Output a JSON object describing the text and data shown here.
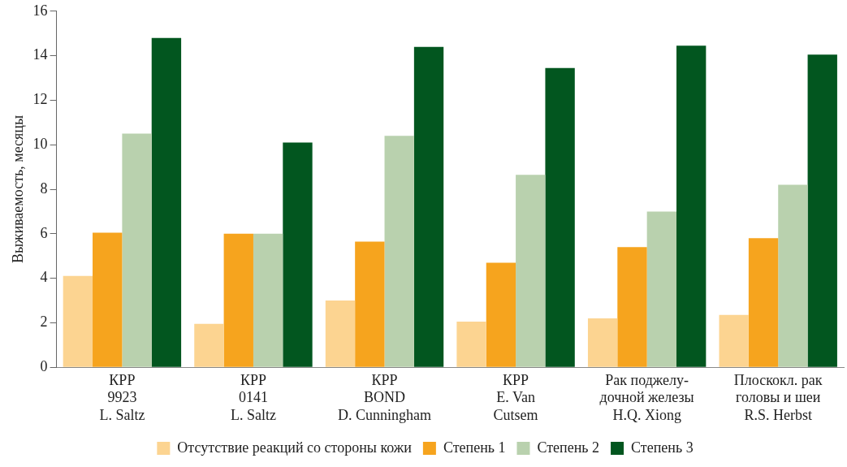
{
  "chart_data": {
    "type": "bar",
    "ylabel": "Выживаемость, месяцы",
    "categories": [
      "КРР\n9923\nL. Saltz",
      "КРР\n0141\nL. Saltz",
      "КРР\nBOND\nD. Cunningham",
      "КРР\nE. Van\nCutsem",
      "Рак поджелу-\nдочной железы\nH.Q. Xiong",
      "Плоскокл. рак\nголовы и шеи\nR.S. Herbst"
    ],
    "series": [
      {
        "name": "Отсутствие реакций со стороны кожи",
        "color": "#fcd491",
        "values": [
          4.1,
          1.95,
          3.0,
          2.05,
          2.2,
          2.35
        ]
      },
      {
        "name": "Степень 1",
        "color": "#f6a41e",
        "values": [
          6.05,
          6.0,
          5.65,
          4.7,
          5.4,
          5.8
        ]
      },
      {
        "name": "Степень 2",
        "color": "#b9d1ae",
        "values": [
          10.5,
          6.0,
          10.4,
          8.65,
          7.0,
          8.2
        ]
      },
      {
        "name": "Степень 3",
        "color": "#02561f",
        "values": [
          14.8,
          10.1,
          14.4,
          13.45,
          14.45,
          14.05
        ]
      }
    ],
    "ylim": [
      0,
      16
    ],
    "yticks": [
      0,
      2,
      4,
      6,
      8,
      10,
      12,
      14,
      16
    ],
    "grid": false,
    "legend": "bottom"
  }
}
